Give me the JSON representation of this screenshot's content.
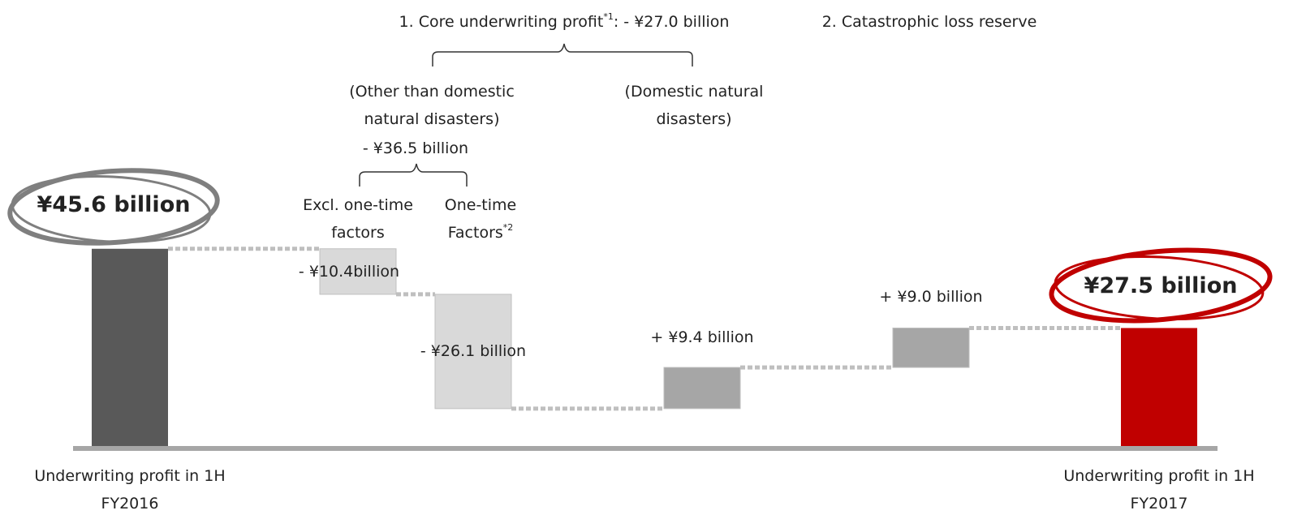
{
  "chart_data": {
    "type": "waterfall",
    "categories": [
      "Underwriting profit in 1H FY2016",
      null,
      null,
      null,
      null,
      "Underwriting profit in 1H FY2017"
    ],
    "measure": [
      "absolute",
      "relative",
      "relative",
      "relative",
      "relative",
      "total"
    ],
    "values": [
      45.6,
      -10.4,
      -26.1,
      9.4,
      9.0,
      27.5
    ],
    "value_labels": [
      "¥45.6 billion",
      "- ¥10.4billion",
      "- ¥26.1 billion",
      "+ ¥9.4 billion",
      "+ ¥9.0 billion",
      "¥27.5 billion"
    ],
    "colors": [
      "#595959",
      "#d9d9d9",
      "#d9d9d9",
      "#a6a6a6",
      "#a6a6a6",
      "#c00000"
    ],
    "ylim": [
      0,
      50
    ],
    "annotations": [
      {
        "text": "1. Core underwriting profit",
        "sup": "*1",
        "suffix": ": - ¥27.0 billion"
      },
      {
        "text": "2. Catastrophic loss reserve"
      },
      {
        "text": "(Other than domestic natural disasters)"
      },
      {
        "text": "- ¥36.5 billion"
      },
      {
        "text": "(Domestic natural disasters)"
      },
      {
        "text": "Excl. one-time factors"
      },
      {
        "text": "One-time Factors",
        "sup": "*2"
      }
    ]
  }
}
